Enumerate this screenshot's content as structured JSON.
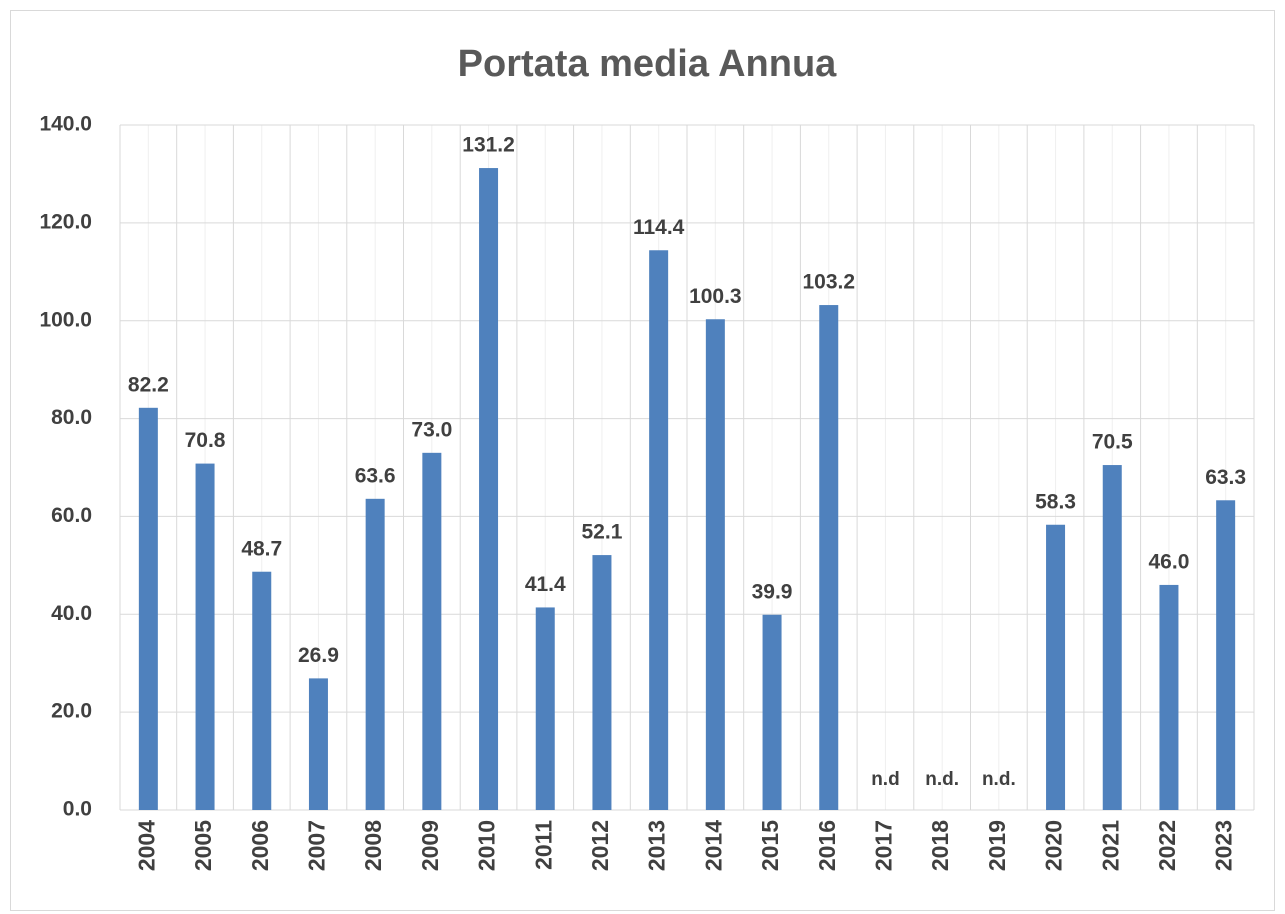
{
  "chart_data": {
    "type": "bar",
    "title": "Portata media Annua",
    "categories": [
      "2004",
      "2005",
      "2006",
      "2007",
      "2008",
      "2009",
      "2010",
      "2011",
      "2012",
      "2013",
      "2014",
      "2015",
      "2016",
      "2017",
      "2018",
      "2019",
      "2020",
      "2021",
      "2022",
      "2023"
    ],
    "values": [
      82.2,
      70.8,
      48.7,
      26.9,
      63.6,
      73.0,
      131.2,
      41.4,
      52.1,
      114.4,
      100.3,
      39.9,
      103.2,
      null,
      null,
      null,
      58.3,
      70.5,
      46.0,
      63.3
    ],
    "value_labels": [
      "82.2",
      "70.8",
      "48.7",
      "26.9",
      "63.6",
      "73.0",
      "131.2",
      "41.4",
      "52.1",
      "114.4",
      "100.3",
      "39.9",
      "103.2",
      "n.d",
      "n.d.",
      "n.d.",
      "58.3",
      "70.5",
      "46.0",
      "63.3"
    ],
    "color": "#4f81bd",
    "ylim": [
      0,
      140
    ],
    "yticks": [
      {
        "value": 0,
        "label": "0.0"
      },
      {
        "value": 20,
        "label": "20.0"
      },
      {
        "value": 40,
        "label": "40.0"
      },
      {
        "value": 60,
        "label": "60.0"
      },
      {
        "value": 80,
        "label": "80.0"
      },
      {
        "value": 100,
        "label": "100.0"
      },
      {
        "value": 120,
        "label": "120.0"
      },
      {
        "value": 140,
        "label": "140.0"
      }
    ],
    "grid": true
  }
}
